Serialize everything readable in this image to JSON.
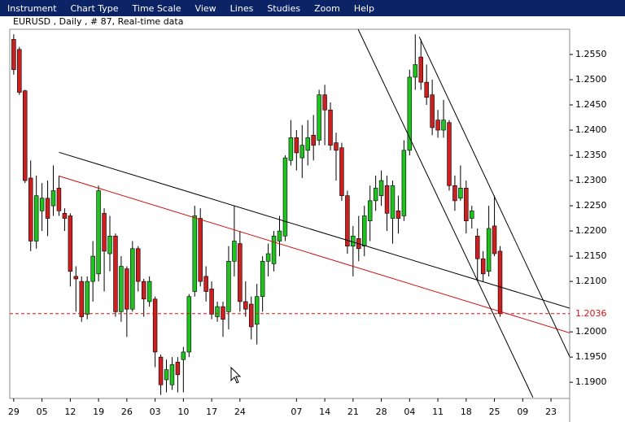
{
  "menu": [
    "Instrument",
    "Chart Type",
    "Time Scale",
    "View",
    "Lines",
    "Studies",
    "Zoom",
    "Help"
  ],
  "chart_data": {
    "type": "candlestick",
    "title": "EURUSD , Daily , # 87, Real-time data",
    "open": [
      1.258,
      1.256,
      1.2478,
      1.2305,
      1.218,
      1.224,
      1.2265,
      1.225,
      1.2285,
      1.2235,
      1.223,
      1.211,
      1.21,
      1.2035,
      1.21,
      1.2115,
      1.2235,
      1.2155,
      1.219,
      1.204,
      1.2125,
      1.2045,
      1.2165,
      1.21,
      1.206,
      1.2065,
      1.195,
      1.1905,
      1.1895,
      1.194,
      1.1945,
      1.196,
      1.208,
      1.2225,
      1.211,
      1.2085,
      1.203,
      1.205,
      1.204,
      1.214,
      1.2175,
      1.206,
      1.2055,
      1.2015,
      1.207,
      1.214,
      1.2135,
      1.218,
      1.219,
      1.234,
      1.2385,
      1.2345,
      1.236,
      1.239,
      1.238,
      1.247,
      1.244,
      1.2375,
      1.2365,
      1.227,
      1.217,
      1.2185,
      1.217,
      1.222,
      1.226,
      1.227,
      1.229,
      1.2225,
      1.224,
      1.223,
      1.236,
      1.2505,
      1.2545,
      1.2495,
      1.247,
      1.242,
      1.24,
      1.2415,
      1.229,
      1.2265,
      1.2285,
      1.2225,
      1.219,
      1.2145,
      1.212,
      1.221,
      1.216
    ],
    "high": [
      1.259,
      1.2565,
      1.248,
      1.234,
      1.231,
      1.2295,
      1.23,
      1.233,
      1.231,
      1.2245,
      1.2235,
      1.213,
      1.211,
      1.211,
      1.218,
      1.229,
      1.2245,
      1.223,
      1.2195,
      1.215,
      1.213,
      1.218,
      1.217,
      1.2105,
      1.211,
      1.207,
      1.1955,
      1.1945,
      1.195,
      1.195,
      1.197,
      1.2075,
      1.225,
      1.2245,
      1.213,
      1.21,
      1.206,
      1.206,
      1.217,
      1.225,
      1.22,
      1.21,
      1.207,
      1.2095,
      1.215,
      1.2175,
      1.22,
      1.223,
      1.235,
      1.242,
      1.24,
      1.241,
      1.242,
      1.243,
      1.248,
      1.249,
      1.2455,
      1.2395,
      1.2375,
      1.228,
      1.221,
      1.223,
      1.225,
      1.229,
      1.231,
      1.232,
      1.231,
      1.23,
      1.227,
      1.238,
      1.252,
      1.259,
      1.258,
      1.253,
      1.25,
      1.244,
      1.246,
      1.242,
      1.231,
      1.233,
      1.23,
      1.225,
      1.2205,
      1.216,
      1.225,
      1.227,
      1.217
    ],
    "low": [
      1.251,
      1.247,
      1.2295,
      1.216,
      1.2165,
      1.22,
      1.219,
      1.223,
      1.223,
      1.22,
      1.209,
      1.204,
      1.202,
      1.2025,
      1.206,
      1.21,
      1.208,
      1.212,
      1.203,
      1.202,
      1.199,
      1.204,
      1.208,
      1.203,
      1.205,
      1.193,
      1.1875,
      1.188,
      1.1885,
      1.188,
      1.188,
      1.195,
      1.207,
      1.209,
      1.206,
      1.2025,
      1.202,
      1.199,
      1.2005,
      1.211,
      1.204,
      1.203,
      1.1985,
      1.1975,
      1.204,
      1.211,
      1.212,
      1.215,
      1.218,
      1.233,
      1.232,
      1.2305,
      1.233,
      1.234,
      1.237,
      1.237,
      1.236,
      1.23,
      1.226,
      1.2155,
      1.211,
      1.214,
      1.215,
      1.218,
      1.224,
      1.225,
      1.22,
      1.2175,
      1.2195,
      1.222,
      1.235,
      1.248,
      1.248,
      1.245,
      1.239,
      1.2385,
      1.2385,
      1.228,
      1.224,
      1.226,
      1.2195,
      1.2205,
      1.21,
      1.21,
      1.211,
      1.215,
      1.203
    ],
    "close": [
      1.252,
      1.2475,
      1.23,
      1.218,
      1.227,
      1.2265,
      1.2225,
      1.228,
      1.224,
      1.2225,
      1.212,
      1.2105,
      1.203,
      1.21,
      1.215,
      1.228,
      1.216,
      1.219,
      1.204,
      1.213,
      1.2045,
      1.2165,
      1.21,
      1.2065,
      1.21,
      1.196,
      1.1895,
      1.1925,
      1.1935,
      1.1915,
      1.196,
      1.207,
      1.223,
      1.21,
      1.208,
      1.2035,
      1.205,
      1.2025,
      1.214,
      1.218,
      1.206,
      1.2045,
      1.201,
      1.207,
      1.214,
      1.2155,
      1.219,
      1.22,
      1.2345,
      1.2385,
      1.2355,
      1.237,
      1.2385,
      1.237,
      1.247,
      1.244,
      1.237,
      1.236,
      1.227,
      1.217,
      1.219,
      1.2165,
      1.223,
      1.226,
      1.2285,
      1.23,
      1.2235,
      1.229,
      1.2225,
      1.236,
      1.2505,
      1.253,
      1.2495,
      1.2465,
      1.2405,
      1.24,
      1.242,
      1.229,
      1.226,
      1.2285,
      1.222,
      1.224,
      1.2145,
      1.2115,
      1.2205,
      1.2155,
      1.2036
    ],
    "colors": {
      "up": "#1fc21f",
      "down": "#cc1f1f"
    },
    "xlim": [
      -0.7,
      98.3
    ],
    "xticks": [
      {
        "value": 0,
        "label": "29"
      },
      {
        "value": 5,
        "label": "05"
      },
      {
        "value": 10,
        "label": "12"
      },
      {
        "value": 15,
        "label": "19"
      },
      {
        "value": 20,
        "label": "26"
      },
      {
        "value": 25,
        "label": "03"
      },
      {
        "value": 30,
        "label": "10"
      },
      {
        "value": 35,
        "label": "17"
      },
      {
        "value": 40,
        "label": "24"
      },
      {
        "value": 50,
        "label": "07"
      },
      {
        "value": 55,
        "label": "14"
      },
      {
        "value": 60,
        "label": "21"
      },
      {
        "value": 65,
        "label": "28"
      },
      {
        "value": 70,
        "label": "04"
      },
      {
        "value": 75,
        "label": "11"
      },
      {
        "value": 80,
        "label": "18"
      },
      {
        "value": 85,
        "label": "25"
      },
      {
        "value": 90,
        "label": "09"
      },
      {
        "value": 95,
        "label": "23"
      }
    ],
    "ylim": [
      1.1868,
      1.26
    ],
    "yticks": [
      {
        "value": 1.255,
        "label": "1.2550"
      },
      {
        "value": 1.25,
        "label": "1.2500"
      },
      {
        "value": 1.245,
        "label": "1.2450"
      },
      {
        "value": 1.24,
        "label": "1.2400"
      },
      {
        "value": 1.235,
        "label": "1.2350"
      },
      {
        "value": 1.23,
        "label": "1.2300"
      },
      {
        "value": 1.225,
        "label": "1.2250"
      },
      {
        "value": 1.22,
        "label": "1.2200"
      },
      {
        "value": 1.215,
        "label": "1.2150"
      },
      {
        "value": 1.21,
        "label": "1.2100"
      },
      {
        "value": 1.2,
        "label": "1.2000"
      },
      {
        "value": 1.195,
        "label": "1.1950"
      },
      {
        "value": 1.19,
        "label": "1.1900"
      }
    ],
    "last_price": 1.2036,
    "last_price_color": "#e01010",
    "trend_lines": [
      {
        "x": [
          8,
          98.3
        ],
        "y": [
          1.2356,
          1.2047
        ],
        "color": "#000000"
      },
      {
        "x": [
          8,
          98.3
        ],
        "y": [
          1.2309,
          1.1998
        ],
        "color": "#d01010"
      },
      {
        "x": [
          60.9,
          91.8
        ],
        "y": [
          1.26,
          1.187
        ],
        "color": "#000000"
      },
      {
        "x": [
          71.7,
          98.3
        ],
        "y": [
          1.2585,
          1.1951
        ],
        "color": "#000000"
      }
    ]
  }
}
